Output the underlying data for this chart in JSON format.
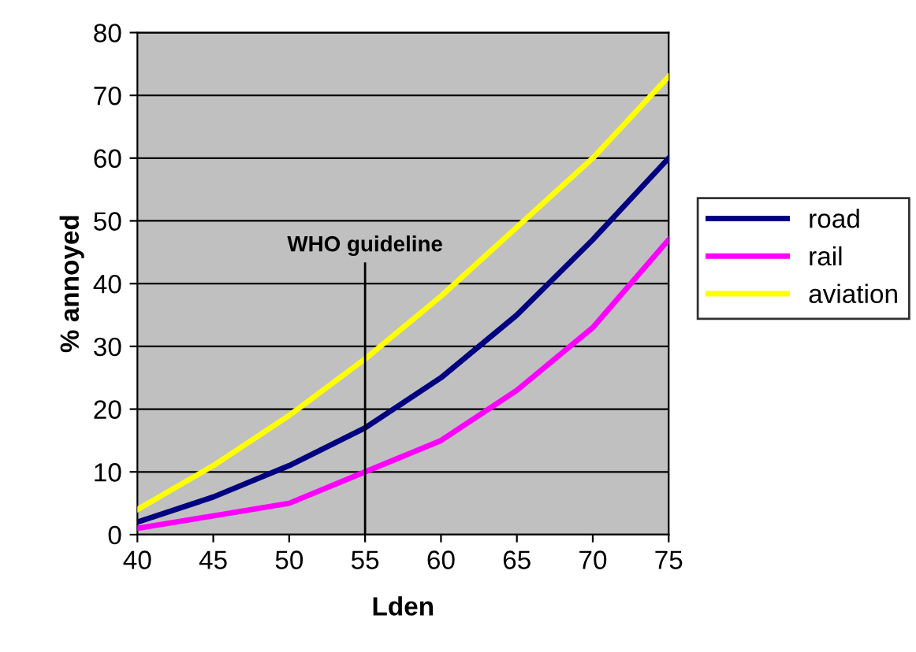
{
  "chart_data": {
    "type": "line",
    "xlabel": "Lden",
    "ylabel": "% annoyed",
    "x": [
      40,
      45,
      50,
      55,
      60,
      65,
      70,
      75
    ],
    "series": [
      {
        "name": "road",
        "color": "#000080",
        "values": [
          2,
          6,
          11,
          17,
          25,
          35,
          47,
          60
        ]
      },
      {
        "name": "rail",
        "color": "#ff00ff",
        "values": [
          1,
          3,
          5,
          10,
          15,
          23,
          33,
          47
        ]
      },
      {
        "name": "aviation",
        "color": "#ffff00",
        "values": [
          4,
          11,
          19,
          28,
          38,
          49,
          60,
          73
        ]
      }
    ],
    "xlim": [
      40,
      75
    ],
    "xticks": [
      40,
      45,
      50,
      55,
      60,
      65,
      70,
      75
    ],
    "ylim": [
      0,
      80
    ],
    "yticks": [
      0,
      10,
      20,
      30,
      40,
      50,
      60,
      70,
      80
    ],
    "grid": "y",
    "legend": "right",
    "marker": "none",
    "line_style": "solid",
    "ref_lines": [
      {
        "axis": "x",
        "value": 55,
        "label": "WHO guideline",
        "color": "#000000"
      }
    ]
  }
}
